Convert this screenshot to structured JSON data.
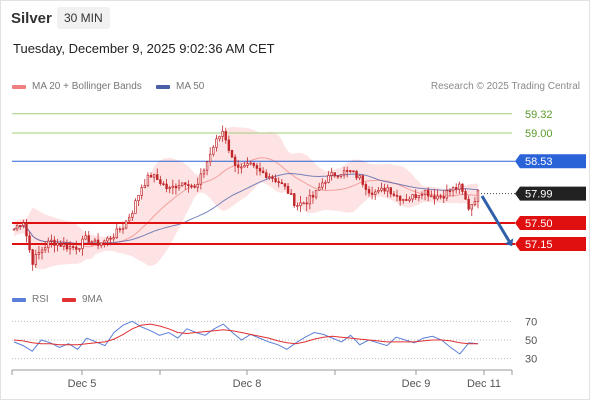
{
  "header": {
    "symbol": "Silver",
    "timeframe": "30 MIN",
    "datetime": "Tuesday, December 9, 2025 9:02:36 AM CET"
  },
  "legend": {
    "ma20_bb": "MA 20 + Bollinger Bands",
    "ma50": "MA 50",
    "rsi": "RSI",
    "ma9": "9MA",
    "credit": "Research © 2025 Trading Central"
  },
  "colors": {
    "candle": "#c0262a",
    "bollinger_fill": "#fde3e3",
    "ma20": "#f08080",
    "ma50": "#4a5fa8",
    "level_red": "#e01010",
    "level_blue": "#2a62d8",
    "level_green": "#a6cd7d",
    "last_price": "#222222",
    "arrow": "#2f5fa8",
    "rsi": "#5b7fd8",
    "rsi_ma": "#e03030"
  },
  "chart_data": [
    {
      "type": "candlestick",
      "y_range": [
        56.55,
        59.55
      ],
      "x_labels": [
        "Dec 5",
        "Dec 8",
        "Dec 9",
        "Dec 11"
      ],
      "levels": [
        {
          "value": 59.32,
          "label": "59.32",
          "kind": "resistance",
          "style": "green"
        },
        {
          "value": 59.0,
          "label": "59.00",
          "kind": "resistance",
          "style": "green"
        },
        {
          "value": 58.53,
          "label": "58.53",
          "kind": "pivot",
          "style": "blue"
        },
        {
          "value": 57.5,
          "label": "57.50",
          "kind": "support",
          "style": "red"
        },
        {
          "value": 57.15,
          "label": "57.15",
          "kind": "support",
          "style": "red"
        }
      ],
      "last_price": {
        "value": 57.99,
        "label": "57.99"
      },
      "projection": {
        "from": 57.95,
        "to": 57.15,
        "direction": "down"
      },
      "close_path": [
        57.4,
        57.55,
        56.85,
        57.05,
        57.2,
        57.15,
        57.1,
        57.1,
        57.25,
        57.15,
        57.2,
        57.3,
        57.45,
        57.7,
        58.1,
        58.3,
        58.2,
        58.05,
        58.15,
        58.2,
        58.05,
        58.45,
        58.8,
        59.05,
        58.55,
        58.4,
        58.45,
        58.35,
        58.3,
        58.2,
        58.05,
        57.8,
        57.85,
        57.95,
        58.2,
        58.3,
        58.35,
        58.35,
        58.25,
        58.05,
        58.0,
        58.1,
        57.95,
        57.9,
        57.95,
        58.05,
        57.95,
        57.95,
        58.05,
        58.1,
        57.75,
        57.99
      ]
    },
    {
      "type": "line",
      "title": "RSI",
      "y_range": [
        20,
        80
      ],
      "y_ticks": [
        70,
        50,
        30
      ],
      "series": [
        {
          "name": "RSI",
          "values": [
            48,
            44,
            38,
            50,
            47,
            42,
            46,
            40,
            52,
            48,
            44,
            58,
            66,
            70,
            64,
            60,
            55,
            58,
            52,
            62,
            58,
            55,
            62,
            67,
            58,
            50,
            56,
            52,
            48,
            45,
            40,
            47,
            53,
            58,
            56,
            52,
            48,
            55,
            45,
            50,
            47,
            44,
            53,
            50,
            47,
            52,
            54,
            50,
            42,
            35,
            47,
            46
          ]
        },
        {
          "name": "9MA",
          "values": [
            50,
            49,
            47,
            46,
            46,
            45,
            45,
            45,
            46,
            47,
            48,
            51,
            56,
            62,
            66,
            67,
            65,
            62,
            58,
            57,
            58,
            59,
            60,
            61,
            60,
            58,
            56,
            54,
            52,
            49,
            47,
            46,
            48,
            51,
            53,
            54,
            53,
            52,
            51,
            50,
            49,
            48,
            48,
            48,
            48,
            49,
            50,
            50,
            49,
            47,
            46,
            46
          ]
        }
      ]
    }
  ]
}
